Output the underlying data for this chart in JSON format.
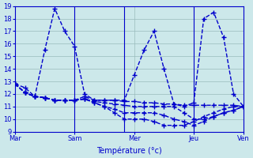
{
  "background_color": "#cce8ea",
  "grid_color": "#99bbbb",
  "line_color": "#0000cc",
  "marker": "+",
  "marker_size": 4,
  "linewidth": 1.0,
  "xlabel": "Température (°c)",
  "ylim": [
    9,
    19
  ],
  "yticks": [
    9,
    10,
    11,
    12,
    13,
    14,
    15,
    16,
    17,
    18,
    19
  ],
  "x_day_labels": [
    "Mar",
    "Sam",
    "Mer",
    "Jeu",
    "Ven"
  ],
  "x_day_positions": [
    0,
    6,
    12,
    18,
    23
  ],
  "x_vline_positions": [
    6,
    11,
    18
  ],
  "n_points": 24,
  "lines": [
    [
      12.8,
      12.5,
      11.8,
      15.5,
      18.8,
      17.0,
      15.8,
      12.0,
      11.5,
      11.5,
      11.5,
      11.5,
      13.5,
      15.5,
      17.0,
      14.0,
      11.2,
      11.0,
      11.3,
      18.0,
      18.5,
      16.5,
      12.0,
      11.0
    ],
    [
      12.8,
      12.1,
      11.8,
      11.7,
      11.5,
      11.5,
      11.5,
      11.8,
      11.5,
      11.5,
      11.5,
      11.4,
      11.4,
      11.3,
      11.3,
      11.2,
      11.2,
      11.1,
      11.1,
      11.1,
      11.1,
      11.1,
      11.1,
      11.0
    ],
    [
      12.8,
      12.1,
      11.8,
      11.7,
      11.5,
      11.5,
      11.5,
      11.6,
      11.4,
      11.3,
      11.2,
      11.1,
      11.0,
      11.0,
      11.0,
      11.0,
      11.0,
      10.5,
      10.0,
      10.0,
      10.2,
      10.5,
      10.7,
      11.0
    ],
    [
      12.8,
      12.1,
      11.8,
      11.7,
      11.5,
      11.5,
      11.5,
      11.6,
      11.3,
      11.0,
      10.8,
      10.5,
      10.5,
      10.5,
      10.5,
      10.3,
      10.0,
      9.8,
      9.5,
      9.8,
      10.2,
      10.5,
      10.7,
      11.0
    ],
    [
      12.8,
      12.1,
      11.8,
      11.7,
      11.5,
      11.5,
      11.5,
      11.6,
      11.3,
      11.0,
      10.5,
      10.0,
      10.0,
      10.0,
      9.8,
      9.5,
      9.5,
      9.5,
      9.8,
      10.2,
      10.5,
      10.8,
      11.0,
      11.0
    ]
  ]
}
